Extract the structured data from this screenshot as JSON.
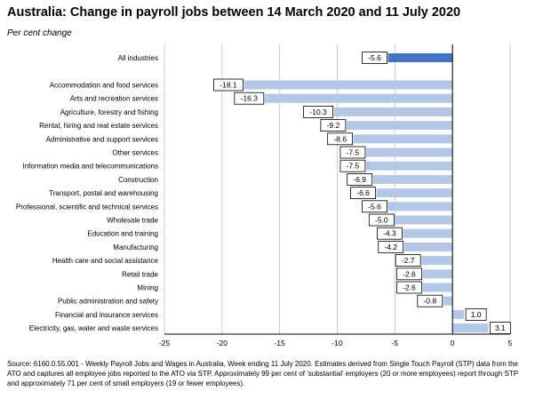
{
  "title": "Australia:  Change in payroll jobs between 14 March 2020 and 11 July 2020",
  "subtitle": "Per cent change",
  "source": "Source: 6160.0.55.001 - Weekly Payroll Jobs and Wages in Australia, Week ending 11 July 2020.  Estimates derived from Single Touch Payroll (STP) data from the ATO and captures all employee jobs reported to the ATO via STP.  Approximately 99 per cent of 'substantial' employers (20 or more employees) report through STP and approximately 71 per cent of small employers (19 or fewer employees).",
  "colors": {
    "highlight": "#4472C4",
    "bar": "#B4C7E7",
    "grid": "#bfbfbf"
  },
  "chart_data": {
    "type": "bar",
    "orientation": "horizontal",
    "title": "Australia:  Change in payroll jobs between 14 March 2020 and 11 July 2020",
    "ylabel": "Per cent change",
    "xlim": [
      -25,
      5
    ],
    "xticks": [
      -25,
      -20,
      -15,
      -10,
      -5,
      0,
      5
    ],
    "grid": true,
    "categories": [
      "All industries",
      "Accommodation and food services",
      "Arts and recreation services",
      "Agriculture, forestry and fishing",
      "Rental, hiring and real estate services",
      "Administrative and support services",
      "Other services",
      "Information media and telecommunications",
      "Construction",
      "Transport, postal and warehousing",
      "Professional, scientific and technical services",
      "Wholesale trade",
      "Education and training",
      "Manufacturing",
      "Health care and social assistance",
      "Retail trade",
      "Mining",
      "Public administration and safety",
      "Financial and insurance services",
      "Electricity, gas, water and waste services"
    ],
    "values": [
      -5.6,
      -18.1,
      -16.3,
      -10.3,
      -9.2,
      -8.6,
      -7.5,
      -7.5,
      -6.9,
      -6.6,
      -5.6,
      -5.0,
      -4.3,
      -4.2,
      -2.7,
      -2.6,
      -2.6,
      -0.8,
      1.0,
      3.1
    ],
    "labels": [
      "-5.6",
      "-18.1",
      "-16.3",
      "-10.3",
      "-9.2",
      "-8.6",
      "-7.5",
      "-7.5",
      "-6.9",
      "-6.6",
      "-5.6",
      "-5.0",
      "-4.3",
      "-4.2",
      "-2.7",
      "-2.6",
      "-2.6",
      "-0.8",
      "1.0",
      "3.1"
    ],
    "highlight": [
      "All industries"
    ]
  }
}
